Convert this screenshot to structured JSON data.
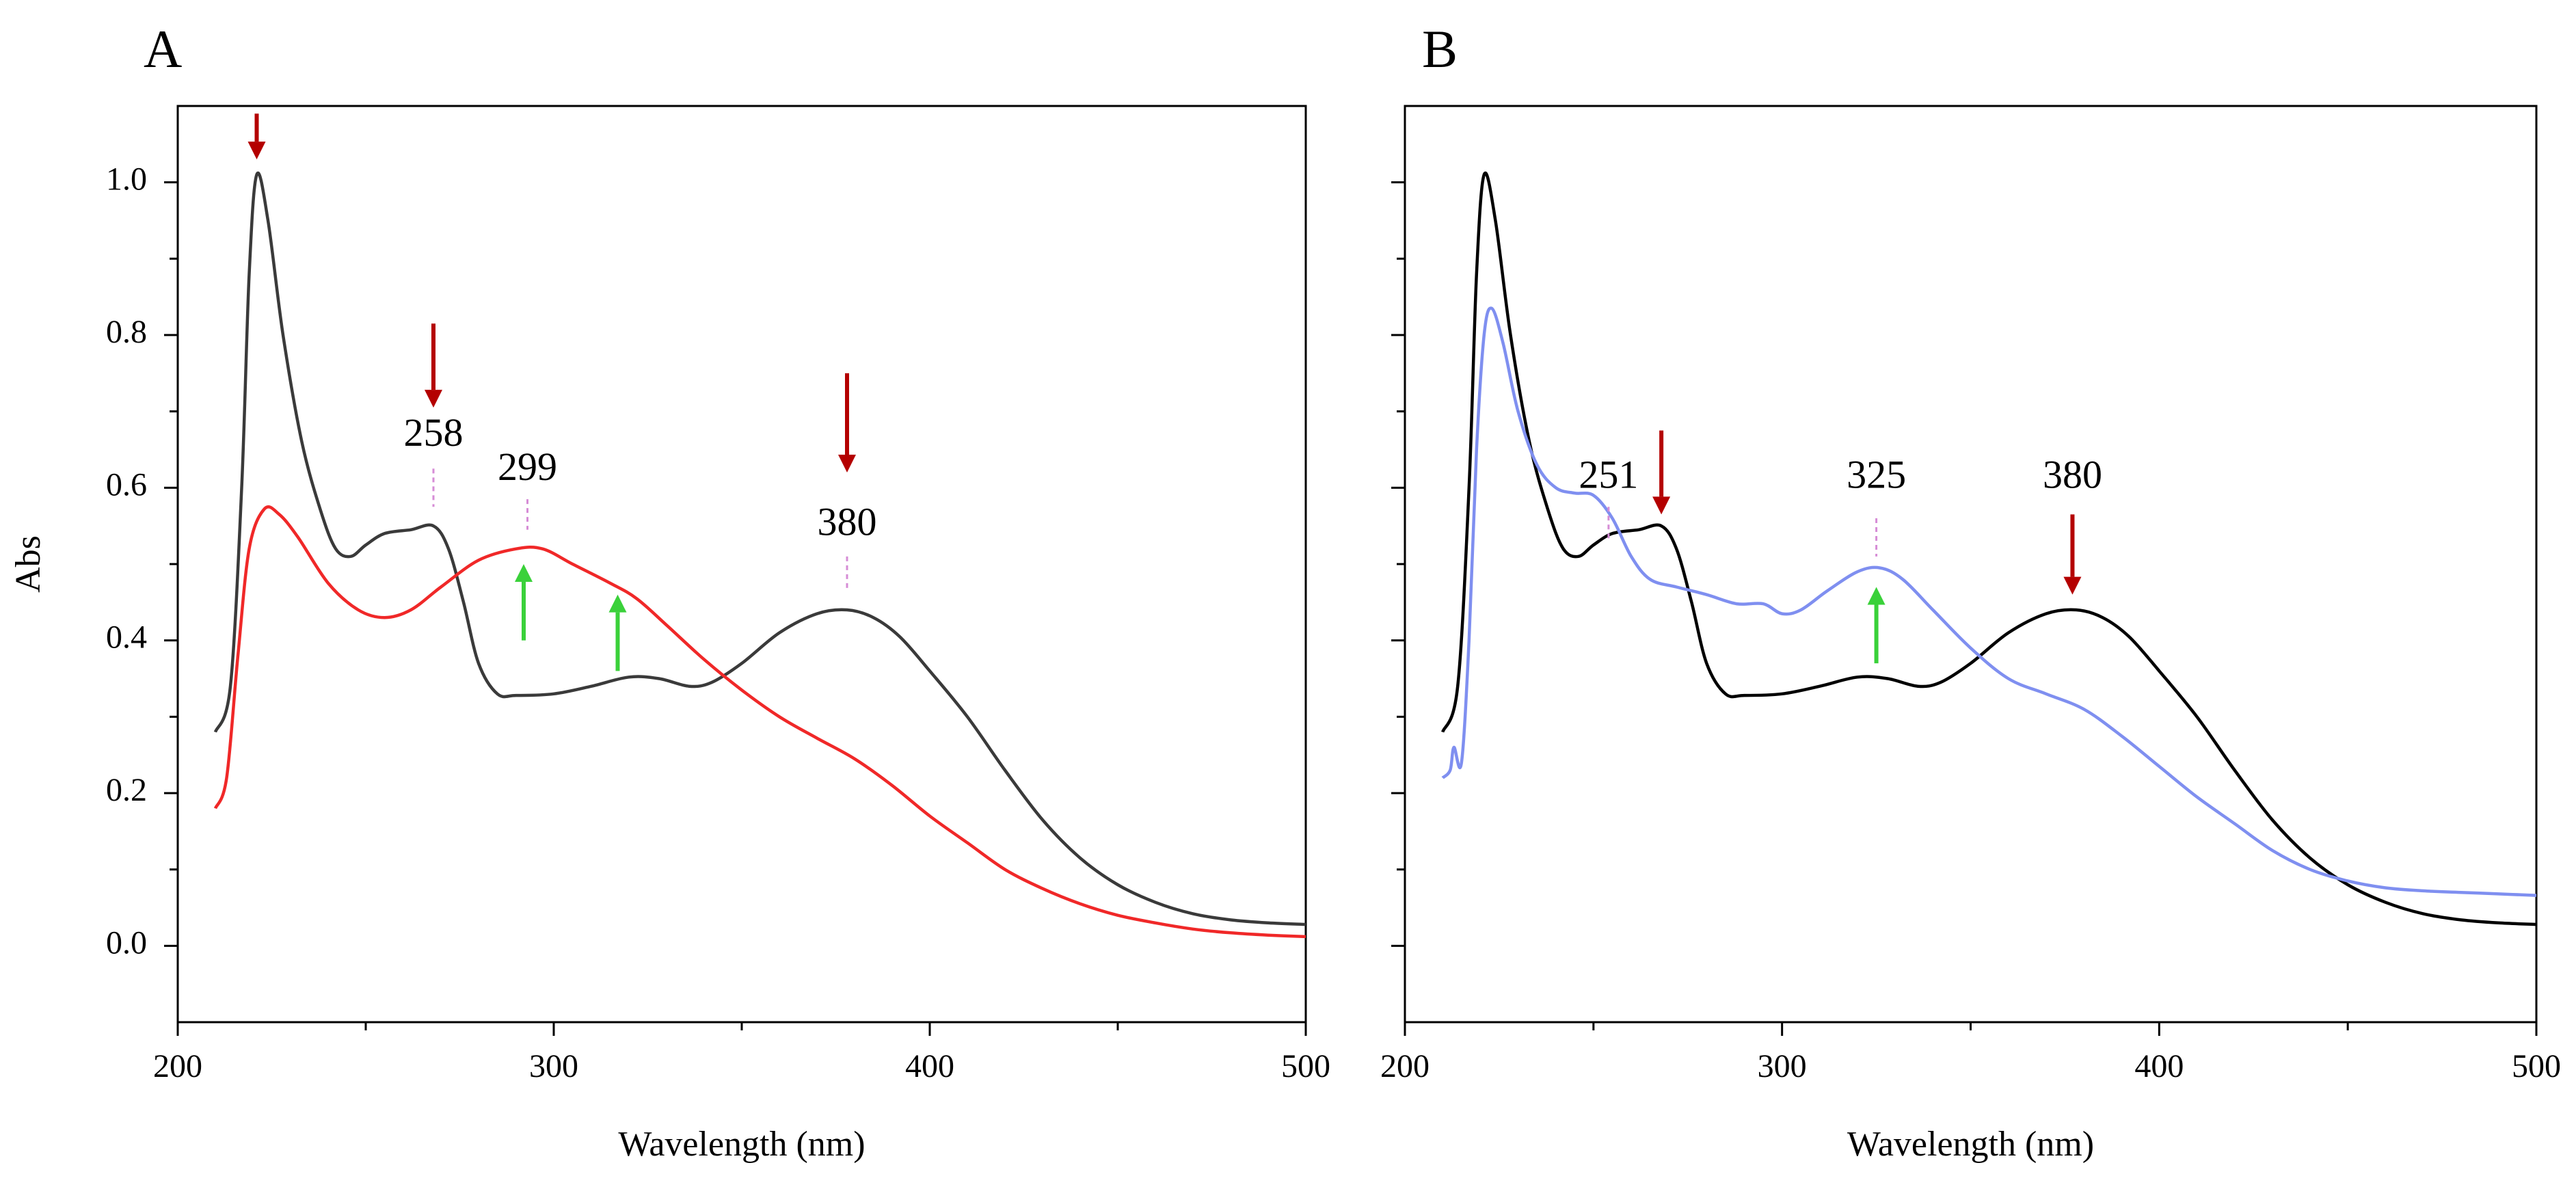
{
  "chart_data": [
    {
      "type": "line",
      "panel_label": "A",
      "xlabel": "Wavelength (nm)",
      "ylabel": "Abs",
      "xlim": [
        200,
        500
      ],
      "ylim": [
        -0.1,
        1.1
      ],
      "x_ticks": [
        200,
        300,
        400,
        500
      ],
      "x_tick_labels": [
        "200",
        "300",
        "400",
        "500"
      ],
      "y_ticks": [
        0.0,
        0.2,
        0.4,
        0.6,
        0.8,
        1.0
      ],
      "y_tick_labels": [
        "0.0",
        "0.2",
        "0.4",
        "0.6",
        "0.8",
        "1.0"
      ],
      "grid": false,
      "series": [
        {
          "name": "dark-gray-spectrum",
          "color": "#3a3a3a",
          "points": [
            [
              210,
              0.28
            ],
            [
              214,
              0.34
            ],
            [
              217,
              0.6
            ],
            [
              219,
              0.88
            ],
            [
              221,
              1.01
            ],
            [
              224,
              0.95
            ],
            [
              228,
              0.8
            ],
            [
              233,
              0.66
            ],
            [
              238,
              0.57
            ],
            [
              242,
              0.52
            ],
            [
              246,
              0.51
            ],
            [
              250,
              0.525
            ],
            [
              255,
              0.54
            ],
            [
              262,
              0.545
            ],
            [
              268,
              0.55
            ],
            [
              272,
              0.52
            ],
            [
              276,
              0.45
            ],
            [
              280,
              0.37
            ],
            [
              285,
              0.33
            ],
            [
              290,
              0.328
            ],
            [
              300,
              0.33
            ],
            [
              310,
              0.34
            ],
            [
              320,
              0.352
            ],
            [
              328,
              0.35
            ],
            [
              336,
              0.34
            ],
            [
              342,
              0.345
            ],
            [
              350,
              0.37
            ],
            [
              360,
              0.41
            ],
            [
              370,
              0.435
            ],
            [
              378,
              0.44
            ],
            [
              385,
              0.43
            ],
            [
              392,
              0.405
            ],
            [
              400,
              0.36
            ],
            [
              410,
              0.3
            ],
            [
              420,
              0.23
            ],
            [
              430,
              0.165
            ],
            [
              440,
              0.115
            ],
            [
              450,
              0.08
            ],
            [
              460,
              0.057
            ],
            [
              470,
              0.042
            ],
            [
              480,
              0.034
            ],
            [
              490,
              0.03
            ],
            [
              500,
              0.028
            ]
          ]
        },
        {
          "name": "red-spectrum",
          "color": "#f02828",
          "points": [
            [
              210,
              0.18
            ],
            [
              213,
              0.22
            ],
            [
              216,
              0.38
            ],
            [
              219,
              0.52
            ],
            [
              223,
              0.572
            ],
            [
              227,
              0.565
            ],
            [
              232,
              0.535
            ],
            [
              240,
              0.475
            ],
            [
              248,
              0.44
            ],
            [
              255,
              0.43
            ],
            [
              262,
              0.44
            ],
            [
              270,
              0.47
            ],
            [
              280,
              0.505
            ],
            [
              290,
              0.52
            ],
            [
              297,
              0.52
            ],
            [
              305,
              0.5
            ],
            [
              315,
              0.475
            ],
            [
              322,
              0.455
            ],
            [
              330,
              0.42
            ],
            [
              340,
              0.375
            ],
            [
              350,
              0.335
            ],
            [
              360,
              0.3
            ],
            [
              370,
              0.272
            ],
            [
              380,
              0.245
            ],
            [
              390,
              0.21
            ],
            [
              400,
              0.17
            ],
            [
              410,
              0.135
            ],
            [
              420,
              0.1
            ],
            [
              430,
              0.075
            ],
            [
              440,
              0.055
            ],
            [
              450,
              0.04
            ],
            [
              460,
              0.03
            ],
            [
              470,
              0.022
            ],
            [
              480,
              0.017
            ],
            [
              490,
              0.014
            ],
            [
              500,
              0.012
            ]
          ]
        }
      ],
      "annotations": [
        {
          "text": "258",
          "x": 268,
          "label_y": 0.655,
          "tick_top": 0.625,
          "tick_bottom": 0.575
        },
        {
          "text": "299",
          "x": 293,
          "label_y": 0.61,
          "tick_top": 0.585,
          "tick_bottom": 0.545
        },
        {
          "text": "380",
          "x": 378,
          "label_y": 0.538,
          "tick_top": 0.51,
          "tick_bottom": 0.465
        }
      ],
      "arrows": [
        {
          "direction": "down",
          "color": "#b40000",
          "x": 221,
          "y_from": 1.09,
          "y_to": 1.03
        },
        {
          "direction": "down",
          "color": "#b40000",
          "x": 268,
          "y_from": 0.815,
          "y_to": 0.705
        },
        {
          "direction": "down",
          "color": "#b40000",
          "x": 378,
          "y_from": 0.75,
          "y_to": 0.62
        },
        {
          "direction": "up",
          "color": "#3ad13a",
          "x": 292,
          "y_from": 0.4,
          "y_to": 0.5
        },
        {
          "direction": "up",
          "color": "#3ad13a",
          "x": 317,
          "y_from": 0.36,
          "y_to": 0.46
        }
      ]
    },
    {
      "type": "line",
      "panel_label": "B",
      "xlabel": "Wavelength (nm)",
      "ylabel": "",
      "xlim": [
        200,
        500
      ],
      "ylim": [
        -0.1,
        1.1
      ],
      "x_ticks": [
        200,
        300,
        400,
        500
      ],
      "x_tick_labels": [
        "200",
        "300",
        "400",
        "500"
      ],
      "y_ticks": [
        0.0,
        0.2,
        0.4,
        0.6,
        0.8,
        1.0
      ],
      "y_tick_labels": [],
      "grid": false,
      "series": [
        {
          "name": "black-spectrum",
          "color": "#000000",
          "points": [
            [
              210,
              0.28
            ],
            [
              214,
              0.34
            ],
            [
              217,
              0.6
            ],
            [
              219,
              0.88
            ],
            [
              221,
              1.01
            ],
            [
              224,
              0.95
            ],
            [
              228,
              0.8
            ],
            [
              233,
              0.66
            ],
            [
              238,
              0.57
            ],
            [
              242,
              0.52
            ],
            [
              246,
              0.51
            ],
            [
              250,
              0.525
            ],
            [
              255,
              0.54
            ],
            [
              262,
              0.545
            ],
            [
              268,
              0.55
            ],
            [
              272,
              0.52
            ],
            [
              276,
              0.45
            ],
            [
              280,
              0.37
            ],
            [
              285,
              0.33
            ],
            [
              290,
              0.328
            ],
            [
              300,
              0.33
            ],
            [
              310,
              0.34
            ],
            [
              320,
              0.352
            ],
            [
              328,
              0.35
            ],
            [
              336,
              0.34
            ],
            [
              342,
              0.345
            ],
            [
              350,
              0.37
            ],
            [
              360,
              0.41
            ],
            [
              370,
              0.435
            ],
            [
              378,
              0.44
            ],
            [
              385,
              0.43
            ],
            [
              392,
              0.405
            ],
            [
              400,
              0.36
            ],
            [
              410,
              0.3
            ],
            [
              420,
              0.23
            ],
            [
              430,
              0.165
            ],
            [
              440,
              0.115
            ],
            [
              450,
              0.08
            ],
            [
              460,
              0.057
            ],
            [
              470,
              0.042
            ],
            [
              480,
              0.034
            ],
            [
              490,
              0.03
            ],
            [
              500,
              0.028
            ]
          ]
        },
        {
          "name": "blue-spectrum",
          "color": "#7f8ff0",
          "points": [
            [
              210,
              0.22
            ],
            [
              212,
              0.23
            ],
            [
              213,
              0.26
            ],
            [
              215,
              0.24
            ],
            [
              217,
              0.4
            ],
            [
              219,
              0.65
            ],
            [
              221,
              0.8
            ],
            [
              223,
              0.835
            ],
            [
              226,
              0.79
            ],
            [
              230,
              0.7
            ],
            [
              235,
              0.63
            ],
            [
              240,
              0.6
            ],
            [
              245,
              0.593
            ],
            [
              250,
              0.59
            ],
            [
              255,
              0.56
            ],
            [
              260,
              0.51
            ],
            [
              265,
              0.48
            ],
            [
              272,
              0.47
            ],
            [
              280,
              0.46
            ],
            [
              288,
              0.448
            ],
            [
              295,
              0.448
            ],
            [
              300,
              0.435
            ],
            [
              305,
              0.44
            ],
            [
              312,
              0.465
            ],
            [
              320,
              0.49
            ],
            [
              326,
              0.495
            ],
            [
              332,
              0.48
            ],
            [
              340,
              0.44
            ],
            [
              350,
              0.39
            ],
            [
              360,
              0.35
            ],
            [
              370,
              0.33
            ],
            [
              380,
              0.31
            ],
            [
              390,
              0.275
            ],
            [
              400,
              0.235
            ],
            [
              410,
              0.195
            ],
            [
              420,
              0.16
            ],
            [
              430,
              0.125
            ],
            [
              440,
              0.1
            ],
            [
              450,
              0.085
            ],
            [
              460,
              0.076
            ],
            [
              470,
              0.072
            ],
            [
              480,
              0.07
            ],
            [
              490,
              0.068
            ],
            [
              500,
              0.066
            ]
          ]
        }
      ],
      "annotations": [
        {
          "text": "251",
          "x": 254,
          "label_y": 0.6,
          "tick_top": 0.575,
          "tick_bottom": 0.53
        },
        {
          "text": "325",
          "x": 325,
          "label_y": 0.6,
          "tick_top": 0.56,
          "tick_bottom": 0.51
        },
        {
          "text": "380",
          "x": 377,
          "label_y": 0.6,
          "tick_top": null,
          "tick_bottom": null
        }
      ],
      "arrows": [
        {
          "direction": "down",
          "color": "#b40000",
          "x": 268,
          "y_from": 0.675,
          "y_to": 0.565
        },
        {
          "direction": "down",
          "color": "#b40000",
          "x": 377,
          "y_from": 0.565,
          "y_to": 0.46
        },
        {
          "direction": "up",
          "color": "#3ad13a",
          "x": 325,
          "y_from": 0.37,
          "y_to": 0.47
        }
      ]
    }
  ]
}
